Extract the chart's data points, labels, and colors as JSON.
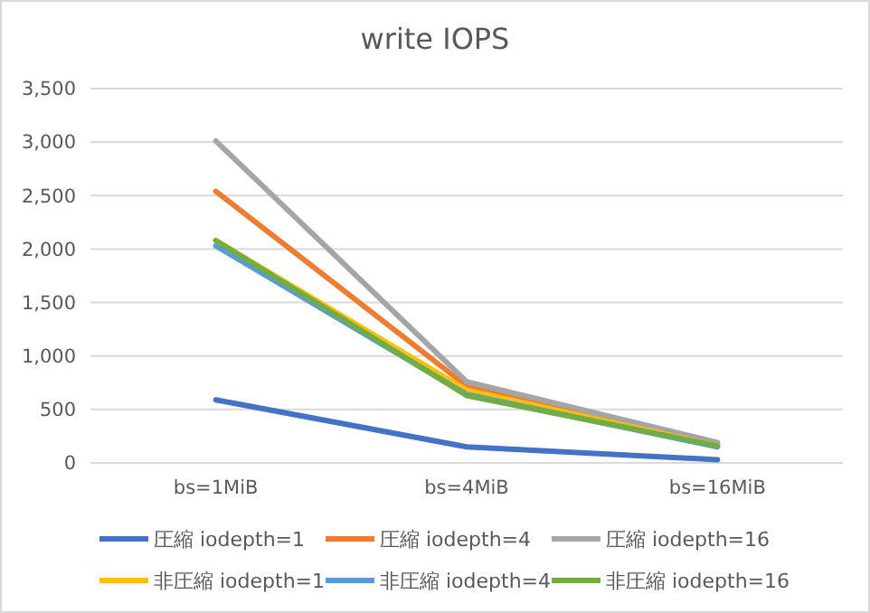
{
  "chart_data": {
    "type": "line",
    "title": "write IOPS",
    "categories": [
      "bs=1MiB",
      "bs=4MiB",
      "bs=16MiB"
    ],
    "series": [
      {
        "name": "圧縮 iodepth=1",
        "color": "#4472c4",
        "values": [
          590,
          150,
          30
        ]
      },
      {
        "name": "圧縮 iodepth=4",
        "color": "#ed7d31",
        "values": [
          2540,
          720,
          170
        ]
      },
      {
        "name": "圧縮 iodepth=16",
        "color": "#a5a5a5",
        "values": [
          3010,
          760,
          190
        ]
      },
      {
        "name": "非圧縮 iodepth=1",
        "color": "#ffc000",
        "values": [
          2080,
          680,
          160
        ]
      },
      {
        "name": "非圧縮 iodepth=4",
        "color": "#5b9bd5",
        "values": [
          2030,
          640,
          150
        ]
      },
      {
        "name": "非圧縮 iodepth=16",
        "color": "#70ad47",
        "values": [
          2080,
          630,
          160
        ]
      }
    ],
    "ylim": [
      0,
      3500
    ],
    "yticks": [
      {
        "value": 0,
        "label": "0"
      },
      {
        "value": 500,
        "label": "500"
      },
      {
        "value": 1000,
        "label": "1,000"
      },
      {
        "value": 1500,
        "label": "1,500"
      },
      {
        "value": 2000,
        "label": "2,000"
      },
      {
        "value": 2500,
        "label": "2,500"
      },
      {
        "value": 3000,
        "label": "3,000"
      },
      {
        "value": 3500,
        "label": "3,500"
      }
    ],
    "grid": "y",
    "legend": "bottom",
    "marker": "none",
    "line_style": "solid"
  }
}
